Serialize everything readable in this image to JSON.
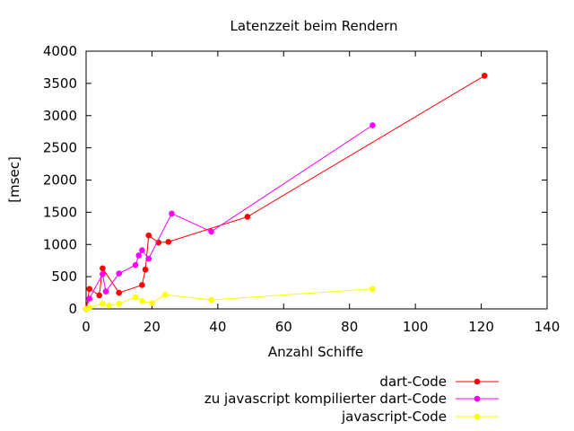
{
  "chart_data": {
    "type": "line",
    "title": "Latenzzeit beim Rendern",
    "xlabel": "Anzahl Schiffe",
    "ylabel": "[msec]",
    "xlim": [
      0,
      140
    ],
    "ylim": [
      0,
      4000
    ],
    "xticks": [
      0,
      20,
      40,
      60,
      80,
      100,
      120,
      140
    ],
    "yticks": [
      0,
      500,
      1000,
      1500,
      2000,
      2500,
      3000,
      3500,
      4000
    ],
    "grid": false,
    "legend_position": "bottom-right",
    "series": [
      {
        "name": "dart-Code",
        "color": "#ff0000",
        "x": [
          0,
          1,
          4,
          5,
          10,
          17,
          18,
          19,
          22,
          25,
          49,
          121
        ],
        "y": [
          0,
          310,
          210,
          630,
          250,
          370,
          610,
          1140,
          1030,
          1040,
          1430,
          3620
        ]
      },
      {
        "name": "zu javascript kompilierter dart-Code",
        "color": "#ff00ff",
        "x": [
          0,
          1,
          5,
          6,
          10,
          15,
          16,
          17,
          19,
          26,
          38,
          87
        ],
        "y": [
          0,
          160,
          540,
          270,
          550,
          680,
          830,
          910,
          780,
          1480,
          1200,
          2850
        ]
      },
      {
        "name": "javascript-Code",
        "color": "#ffff00",
        "x": [
          0,
          1,
          5,
          7,
          10,
          15,
          17,
          20,
          24,
          38,
          87
        ],
        "y": [
          0,
          20,
          80,
          50,
          80,
          180,
          120,
          90,
          220,
          140,
          310
        ]
      }
    ]
  }
}
